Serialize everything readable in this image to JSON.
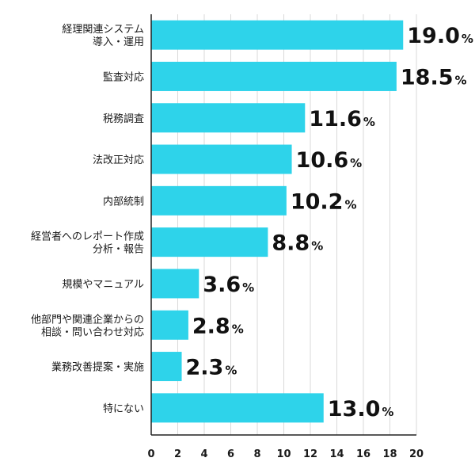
{
  "chart_data": {
    "type": "bar",
    "orientation": "horizontal",
    "categories": [
      [
        "経理関連システム",
        "導入・運用"
      ],
      [
        "監査対応"
      ],
      [
        "税務調査"
      ],
      [
        "法改正対応"
      ],
      [
        "内部統制"
      ],
      [
        "経営者へのレポート作成",
        "分析・報告"
      ],
      [
        "規模やマニュアル"
      ],
      [
        "他部門や関連企業からの",
        "相談・問い合わせ対応"
      ],
      [
        "業務改善提案・実施"
      ],
      [
        "特にない"
      ]
    ],
    "values": [
      19.0,
      18.5,
      11.6,
      10.6,
      10.2,
      8.8,
      3.6,
      2.8,
      2.3,
      13.0
    ],
    "value_labels": [
      "19.0",
      "18.5",
      "11.6",
      "10.6",
      "10.2",
      "8.8",
      "3.6",
      "2.8",
      "2.3",
      "13.0"
    ],
    "value_unit": "%",
    "x_ticks": [
      "0",
      "2",
      "4",
      "6",
      "8",
      "10",
      "12",
      "14",
      "16",
      "18",
      "20"
    ],
    "xlim": [
      0,
      20
    ],
    "grid": true,
    "bar_color": "#2ed3ea",
    "grid_color": "#d9d9d9",
    "axis_color": "#222222"
  }
}
